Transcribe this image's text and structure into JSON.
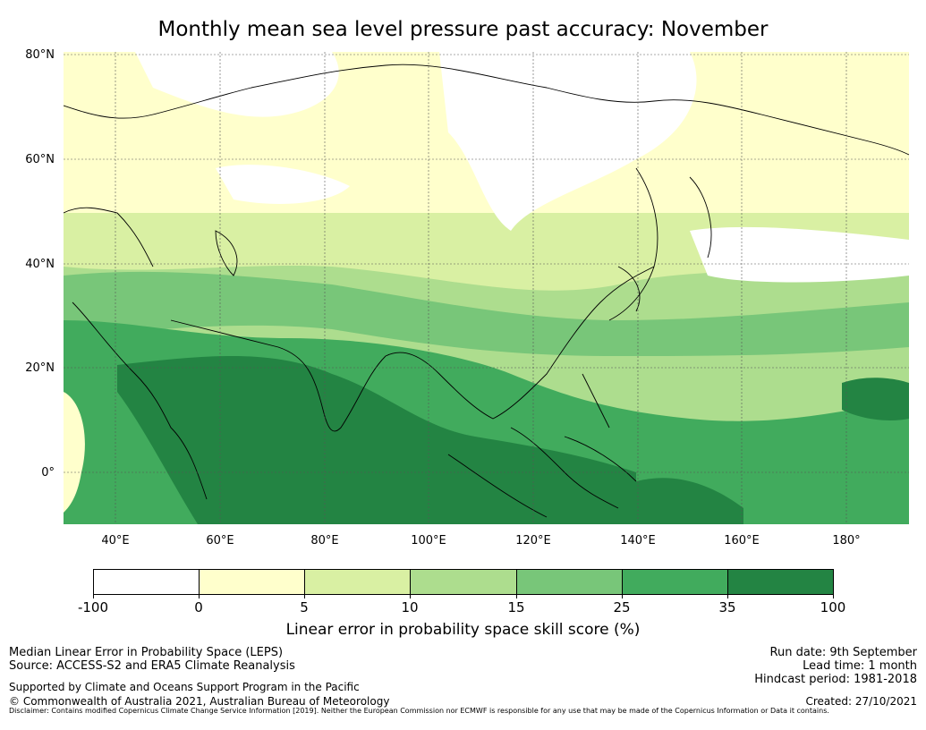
{
  "title": "Monthly mean sea level pressure past accuracy: November",
  "map": {
    "lat_labels": [
      "80°N",
      "60°N",
      "40°N",
      "20°N",
      "0°"
    ],
    "lon_labels": [
      "40°E",
      "60°E",
      "80°E",
      "100°E",
      "120°E",
      "140°E",
      "160°E",
      "180°"
    ],
    "extent": {
      "lon_min": 30,
      "lon_max": 192,
      "lat_min": -10,
      "lat_max": 80
    },
    "ocean_color": "#b2df8a"
  },
  "colorbar": {
    "ticks": [
      "-100",
      "0",
      "5",
      "10",
      "15",
      "25",
      "35",
      "100"
    ],
    "colors": [
      "#ffffff",
      "#ffffcc",
      "#d9f0a3",
      "#addd8e",
      "#78c679",
      "#41ab5d",
      "#238443"
    ],
    "label": "Linear error in probability space skill score (%)"
  },
  "footer": {
    "left_line1": "Median Linear Error in Probability Space (LEPS)",
    "left_line2": "Source: ACCESS-S2 and ERA5 Climate Reanalysis",
    "left_line3": "Supported by Climate and Oceans Support Program in the Pacific",
    "left_line4": "© Commonwealth of Australia 2021, Australian Bureau of Meteorology",
    "right_line1": "Run date: 9th September",
    "right_line2": "Lead time: 1 month",
    "right_line3": "Hindcast period: 1981-2018",
    "right_line4": "Created: 27/10/2021",
    "disclaimer": "Disclaimer: Contains modified Copernicus Climate Change Service Information [2019]. Neither the European Commission nor ECMWF is responsible for any use that may be made of the Copernicus Information or Data it contains."
  }
}
